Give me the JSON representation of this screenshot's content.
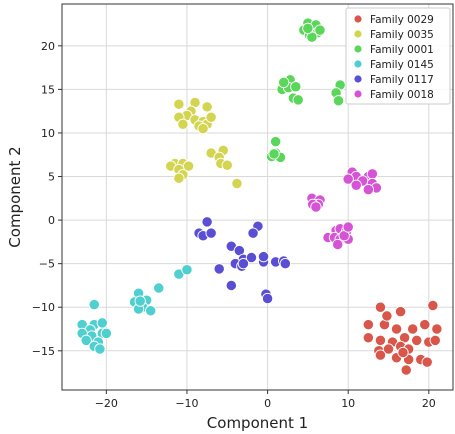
{
  "chart_data": {
    "type": "scatter",
    "xlabel": "Component 1",
    "ylabel": "Component 2",
    "xlim": [
      -25.5,
      23
    ],
    "ylim": [
      -19.5,
      24.8
    ],
    "xticks": [
      -20,
      -10,
      0,
      10,
      20
    ],
    "yticks": [
      -15,
      -10,
      -5,
      0,
      5,
      10,
      15,
      20
    ],
    "grid": true,
    "legend_position": "top-right",
    "series": [
      {
        "name": "Family 0029",
        "color": "#d9574a",
        "points": [
          [
            14,
            -10
          ],
          [
            16.5,
            -10.5
          ],
          [
            20.5,
            -9.8
          ],
          [
            12.5,
            -12
          ],
          [
            14.5,
            -12
          ],
          [
            16,
            -12.5
          ],
          [
            18,
            -12.5
          ],
          [
            19.5,
            -12
          ],
          [
            21,
            -12.5
          ],
          [
            12.5,
            -13.5
          ],
          [
            14,
            -13.8
          ],
          [
            15.5,
            -14
          ],
          [
            17,
            -13.5
          ],
          [
            18.5,
            -13.8
          ],
          [
            20,
            -14
          ],
          [
            20.8,
            -13.8
          ],
          [
            13.8,
            -15
          ],
          [
            15,
            -14.8
          ],
          [
            16.5,
            -14.5
          ],
          [
            17.5,
            -14.8
          ],
          [
            14,
            -15.5
          ],
          [
            16,
            -15.8
          ],
          [
            17.5,
            -16
          ],
          [
            19,
            -16
          ],
          [
            19.8,
            -16.3
          ],
          [
            17.2,
            -17.2
          ],
          [
            16.8,
            -15.2
          ],
          [
            14.8,
            -11
          ]
        ]
      },
      {
        "name": "Family 0035",
        "color": "#d3d551",
        "points": [
          [
            -11,
            13.3
          ],
          [
            -9,
            13.5
          ],
          [
            -7.5,
            13
          ],
          [
            -9.5,
            12.5
          ],
          [
            -10,
            12
          ],
          [
            -11,
            11.8
          ],
          [
            -9,
            11.5
          ],
          [
            -8,
            11.3
          ],
          [
            -7.5,
            11
          ],
          [
            -10.5,
            11
          ],
          [
            -8.5,
            10.8
          ],
          [
            -7,
            11.8
          ],
          [
            -8,
            10.5
          ],
          [
            -11.5,
            6.5
          ],
          [
            -10.5,
            6.5
          ],
          [
            -9.8,
            6.2
          ],
          [
            -12,
            6.2
          ],
          [
            -11,
            5.8
          ],
          [
            -10.5,
            5.2
          ],
          [
            -11,
            4.8
          ],
          [
            -7,
            7.7
          ],
          [
            -5.5,
            8
          ],
          [
            -6,
            7.2
          ],
          [
            -5.8,
            6.5
          ],
          [
            -5,
            6.3
          ],
          [
            -3.8,
            4.2
          ]
        ]
      },
      {
        "name": "Family 0001",
        "color": "#5ad65a",
        "points": [
          [
            5,
            22.6
          ],
          [
            6,
            22.4
          ],
          [
            4.5,
            21.8
          ],
          [
            6.2,
            21.5
          ],
          [
            5.2,
            21.2
          ],
          [
            6.5,
            21.8
          ],
          [
            5.5,
            21
          ],
          [
            5,
            22
          ],
          [
            2.8,
            16.1
          ],
          [
            1.8,
            15
          ],
          [
            2.6,
            15.2
          ],
          [
            3.5,
            15.3
          ],
          [
            3.2,
            14
          ],
          [
            3.8,
            13.8
          ],
          [
            9,
            15.5
          ],
          [
            8.5,
            14.6
          ],
          [
            8.8,
            13.7
          ],
          [
            1,
            9
          ],
          [
            1,
            7.7
          ],
          [
            0.5,
            7.3
          ],
          [
            1.6,
            7.2
          ],
          [
            0.8,
            7.6
          ],
          [
            2,
            15.8
          ]
        ]
      },
      {
        "name": "Family 0145",
        "color": "#4fcfcf",
        "points": [
          [
            -21.5,
            -9.7
          ],
          [
            -23,
            -12
          ],
          [
            -21.5,
            -12
          ],
          [
            -20.5,
            -11.8
          ],
          [
            -22,
            -12.6
          ],
          [
            -21.8,
            -13.3
          ],
          [
            -23,
            -13
          ],
          [
            -22.5,
            -13.8
          ],
          [
            -20.5,
            -13
          ],
          [
            -20,
            -13
          ],
          [
            -21,
            -14
          ],
          [
            -21.5,
            -14.5
          ],
          [
            -20.8,
            -14.8
          ],
          [
            -16,
            -8.4
          ],
          [
            -16.5,
            -9.4
          ],
          [
            -15,
            -9.2
          ],
          [
            -15.5,
            -10
          ],
          [
            -16,
            -10.2
          ],
          [
            -14.5,
            -10.4
          ],
          [
            -15.8,
            -9.3
          ],
          [
            -13.5,
            -7.8
          ],
          [
            -11,
            -6.2
          ],
          [
            -10,
            -5.7
          ]
        ]
      },
      {
        "name": "Family 0117",
        "color": "#5a4fd4",
        "points": [
          [
            -7.5,
            -0.2
          ],
          [
            -8.5,
            -1.5
          ],
          [
            -8,
            -1.8
          ],
          [
            -7,
            -1.5
          ],
          [
            -1.2,
            -0.7
          ],
          [
            -1.8,
            -1.5
          ],
          [
            -4.5,
            -3
          ],
          [
            -3.5,
            -3.5
          ],
          [
            -3,
            -4.5
          ],
          [
            -2,
            -4.3
          ],
          [
            -4,
            -5
          ],
          [
            -3.2,
            -5.3
          ],
          [
            -6,
            -5.6
          ],
          [
            -3,
            -5
          ],
          [
            -4.5,
            -7.5
          ],
          [
            -0.5,
            -4.8
          ],
          [
            1,
            -4.8
          ],
          [
            2,
            -4.7
          ],
          [
            2.2,
            -5
          ],
          [
            -0.2,
            -8.5
          ],
          [
            0,
            -9
          ],
          [
            -0.5,
            -4.2
          ]
        ]
      },
      {
        "name": "Family 0018",
        "color": "#d653d6",
        "points": [
          [
            10.5,
            5.5
          ],
          [
            11,
            5
          ],
          [
            10,
            4.7
          ],
          [
            12.5,
            5
          ],
          [
            13,
            5.3
          ],
          [
            11.8,
            4.5
          ],
          [
            13,
            4.2
          ],
          [
            13.5,
            3.7
          ],
          [
            12.5,
            3.5
          ],
          [
            11,
            4
          ],
          [
            5.5,
            2.5
          ],
          [
            6.5,
            2.3
          ],
          [
            6.3,
            1.8
          ],
          [
            5.6,
            1.8
          ],
          [
            6,
            1.5
          ],
          [
            8.5,
            -1.2
          ],
          [
            9,
            -1
          ],
          [
            9.8,
            -1.3
          ],
          [
            7.5,
            -2
          ],
          [
            8.3,
            -2
          ],
          [
            9,
            -2.2
          ],
          [
            10,
            -2.2
          ],
          [
            8.7,
            -2.8
          ],
          [
            9.5,
            -1.8
          ],
          [
            10,
            -0.8
          ]
        ]
      }
    ]
  }
}
